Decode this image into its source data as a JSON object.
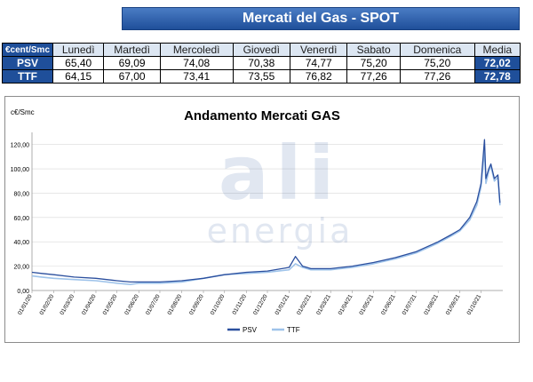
{
  "header": {
    "title": "Mercati del Gas - SPOT"
  },
  "table": {
    "corner": "€cent/Smc",
    "columns": [
      "Lunedì",
      "Martedì",
      "Mercoledì",
      "Giovedì",
      "Venerdì",
      "Sabato",
      "Domenica",
      "Media"
    ],
    "rows": [
      {
        "label": "PSV",
        "values": [
          "65,40",
          "69,09",
          "74,08",
          "70,38",
          "74,77",
          "75,20",
          "75,20",
          "72,02"
        ]
      },
      {
        "label": "TTF",
        "values": [
          "64,15",
          "67,00",
          "73,41",
          "73,55",
          "76,82",
          "77,26",
          "77,26",
          "72,78"
        ]
      }
    ]
  },
  "watermark": {
    "text_big": "ali",
    "text_small": "energia"
  },
  "colors": {
    "psv": "#2b4f9e",
    "ttf": "#9ec3ea",
    "header_blue": "#1f4f9a",
    "header_light": "#dce6f2"
  },
  "chart_data": {
    "type": "line",
    "title": "Andamento Mercati GAS",
    "ylabel": "c€/Smc",
    "xlabel": "",
    "ylim": [
      0,
      130
    ],
    "yticks": [
      "0,00",
      "20,00",
      "40,00",
      "60,00",
      "80,00",
      "100,00",
      "120,00"
    ],
    "x_tick_labels": [
      "01/01/20",
      "01/02/20",
      "01/03/20",
      "01/04/20",
      "01/05/20",
      "01/06/20",
      "01/07/20",
      "01/08/20",
      "01/09/20",
      "01/10/20",
      "01/11/20",
      "01/12/20",
      "01/01/21",
      "01/02/21",
      "01/03/21",
      "01/04/21",
      "01/05/21",
      "01/06/21",
      "01/07/21",
      "01/08/21",
      "01/09/21",
      "01/10/21"
    ],
    "legend": "bottom",
    "grid": true,
    "series": [
      {
        "name": "PSV",
        "x": [
          "2020-01-01",
          "2020-01-15",
          "2020-02-01",
          "2020-03-01",
          "2020-04-01",
          "2020-05-01",
          "2020-05-20",
          "2020-06-01",
          "2020-07-01",
          "2020-08-01",
          "2020-09-01",
          "2020-10-01",
          "2020-11-01",
          "2020-12-01",
          "2021-01-01",
          "2021-01-10",
          "2021-01-20",
          "2021-02-01",
          "2021-03-01",
          "2021-04-01",
          "2021-05-01",
          "2021-06-01",
          "2021-07-01",
          "2021-08-01",
          "2021-08-20",
          "2021-09-01",
          "2021-09-15",
          "2021-09-25",
          "2021-10-01",
          "2021-10-06",
          "2021-10-08",
          "2021-10-12",
          "2021-10-15",
          "2021-10-20",
          "2021-10-25",
          "2021-10-28"
        ],
        "values": [
          15,
          14,
          13,
          11,
          10,
          8,
          7,
          7,
          7,
          8,
          10,
          13,
          15,
          16,
          19,
          28,
          20,
          18,
          18,
          20,
          23,
          27,
          32,
          40,
          46,
          50,
          60,
          73,
          88,
          124,
          92,
          100,
          104,
          92,
          95,
          72
        ]
      },
      {
        "name": "TTF",
        "x": [
          "2020-01-01",
          "2020-01-15",
          "2020-02-01",
          "2020-03-01",
          "2020-04-01",
          "2020-05-01",
          "2020-05-20",
          "2020-06-01",
          "2020-07-01",
          "2020-08-01",
          "2020-09-01",
          "2020-10-01",
          "2020-11-01",
          "2020-12-01",
          "2021-01-01",
          "2021-01-10",
          "2021-01-20",
          "2021-02-01",
          "2021-03-01",
          "2021-04-01",
          "2021-05-01",
          "2021-06-01",
          "2021-07-01",
          "2021-08-01",
          "2021-08-20",
          "2021-09-01",
          "2021-09-15",
          "2021-09-25",
          "2021-10-01",
          "2021-10-06",
          "2021-10-08",
          "2021-10-12",
          "2021-10-15",
          "2021-10-20",
          "2021-10-25",
          "2021-10-28"
        ],
        "values": [
          12,
          11,
          10,
          9,
          8,
          6,
          5,
          6,
          6,
          7,
          10,
          13,
          14,
          15,
          17,
          22,
          19,
          17,
          17,
          19,
          22,
          26,
          31,
          39,
          45,
          49,
          58,
          70,
          85,
          115,
          88,
          98,
          102,
          90,
          93,
          70
        ]
      }
    ]
  }
}
